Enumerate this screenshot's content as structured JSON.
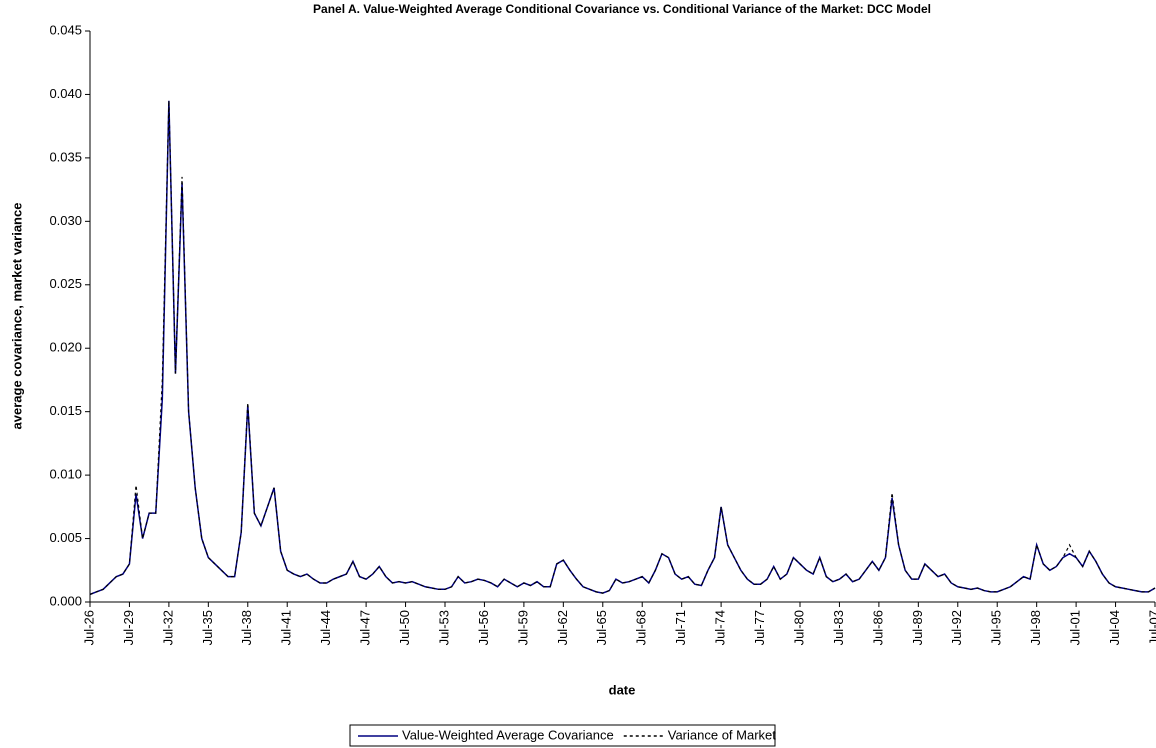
{
  "chart_data": {
    "type": "line",
    "title": "Panel A.  Value-Weighted Average Conditional Covariance vs. Conditional Variance of the Market:  DCC Model",
    "x_label": "date",
    "y_label": "average covariance, market variance",
    "categories": [
      "Jul-26",
      null,
      null,
      null,
      null,
      null,
      "Jul-29",
      null,
      null,
      null,
      null,
      null,
      "Jul-32",
      null,
      null,
      null,
      null,
      null,
      "Jul-35",
      null,
      null,
      null,
      null,
      null,
      "Jul-38",
      null,
      null,
      null,
      null,
      null,
      "Jul-41",
      null,
      null,
      null,
      null,
      null,
      "Jul-44",
      null,
      null,
      null,
      null,
      null,
      "Jul-47",
      null,
      null,
      null,
      null,
      null,
      "Jul-50",
      null,
      null,
      null,
      null,
      null,
      "Jul-53",
      null,
      null,
      null,
      null,
      null,
      "Jul-56",
      null,
      null,
      null,
      null,
      null,
      "Jul-59",
      null,
      null,
      null,
      null,
      null,
      "Jul-62",
      null,
      null,
      null,
      null,
      null,
      "Jul-65",
      null,
      null,
      null,
      null,
      null,
      "Jul-68",
      null,
      null,
      null,
      null,
      null,
      "Jul-71",
      null,
      null,
      null,
      null,
      null,
      "Jul-74",
      null,
      null,
      null,
      null,
      null,
      "Jul-77",
      null,
      null,
      null,
      null,
      null,
      "Jul-80",
      null,
      null,
      null,
      null,
      null,
      "Jul-83",
      null,
      null,
      null,
      null,
      null,
      "Jul-86",
      null,
      null,
      null,
      null,
      null,
      "Jul-89",
      null,
      null,
      null,
      null,
      null,
      "Jul-92",
      null,
      null,
      null,
      null,
      null,
      "Jul-95",
      null,
      null,
      null,
      null,
      null,
      "Jul-98",
      null,
      null,
      null,
      null,
      null,
      "Jul-01",
      null,
      null,
      null,
      null,
      null,
      "Jul-04",
      null,
      null,
      null,
      null,
      null,
      "Jul-07"
    ],
    "series": [
      {
        "name": "Value-Weighted Average Covariance",
        "color": "#000080",
        "dash": false,
        "values": [
          0.0006,
          0.0008,
          0.001,
          0.0015,
          0.002,
          0.0022,
          0.003,
          0.0085,
          0.005,
          0.007,
          0.007,
          0.016,
          0.0395,
          0.018,
          0.033,
          0.015,
          0.009,
          0.005,
          0.0035,
          0.003,
          0.0025,
          0.002,
          0.002,
          0.0055,
          0.0155,
          0.007,
          0.006,
          0.0075,
          0.009,
          0.004,
          0.0025,
          0.0022,
          0.002,
          0.0022,
          0.0018,
          0.0015,
          0.0015,
          0.0018,
          0.002,
          0.0022,
          0.0032,
          0.002,
          0.0018,
          0.0022,
          0.0028,
          0.002,
          0.0015,
          0.0016,
          0.0015,
          0.0016,
          0.0014,
          0.0012,
          0.0011,
          0.001,
          0.001,
          0.0012,
          0.002,
          0.0015,
          0.0016,
          0.0018,
          0.0017,
          0.0015,
          0.0012,
          0.0018,
          0.0015,
          0.0012,
          0.0015,
          0.0013,
          0.0016,
          0.0012,
          0.0012,
          0.003,
          0.0033,
          0.0025,
          0.0018,
          0.0012,
          0.001,
          0.0008,
          0.0007,
          0.0009,
          0.0018,
          0.0015,
          0.0016,
          0.0018,
          0.002,
          0.0015,
          0.0025,
          0.0038,
          0.0035,
          0.0022,
          0.0018,
          0.002,
          0.0014,
          0.0013,
          0.0025,
          0.0035,
          0.0075,
          0.0045,
          0.0035,
          0.0025,
          0.0018,
          0.0014,
          0.0014,
          0.0018,
          0.0028,
          0.0018,
          0.0022,
          0.0035,
          0.003,
          0.0025,
          0.0022,
          0.0035,
          0.002,
          0.0016,
          0.0018,
          0.0022,
          0.0016,
          0.0018,
          0.0025,
          0.0032,
          0.0025,
          0.0035,
          0.0082,
          0.0045,
          0.0025,
          0.0018,
          0.0018,
          0.003,
          0.0025,
          0.002,
          0.0022,
          0.0015,
          0.0012,
          0.0011,
          0.001,
          0.0011,
          0.0009,
          0.0008,
          0.0008,
          0.001,
          0.0012,
          0.0016,
          0.002,
          0.0018,
          0.0045,
          0.003,
          0.0025,
          0.0028,
          0.0035,
          0.0038,
          0.0035,
          0.0028,
          0.004,
          0.0032,
          0.0022,
          0.0015,
          0.0012,
          0.0011,
          0.001,
          0.0009,
          0.0008,
          0.0008,
          0.0011
        ]
      },
      {
        "name": "Variance of Market",
        "color": "#000000",
        "dash": true,
        "values": [
          0.0006,
          0.0008,
          0.001,
          0.0015,
          0.002,
          0.0022,
          0.003,
          0.0092,
          0.005,
          0.007,
          0.007,
          0.0175,
          0.0395,
          0.018,
          0.0335,
          0.015,
          0.009,
          0.005,
          0.0035,
          0.003,
          0.0025,
          0.002,
          0.002,
          0.0055,
          0.0157,
          0.007,
          0.006,
          0.0075,
          0.009,
          0.004,
          0.0025,
          0.0022,
          0.002,
          0.0022,
          0.0018,
          0.0015,
          0.0015,
          0.0018,
          0.002,
          0.0022,
          0.0032,
          0.002,
          0.0018,
          0.0022,
          0.0028,
          0.002,
          0.0015,
          0.0016,
          0.0015,
          0.0016,
          0.0014,
          0.0012,
          0.0011,
          0.001,
          0.001,
          0.0012,
          0.002,
          0.0015,
          0.0016,
          0.0018,
          0.0017,
          0.0015,
          0.0012,
          0.0018,
          0.0015,
          0.0012,
          0.0015,
          0.0013,
          0.0016,
          0.0012,
          0.0012,
          0.003,
          0.0033,
          0.0025,
          0.0018,
          0.0012,
          0.001,
          0.0008,
          0.0007,
          0.0009,
          0.0018,
          0.0015,
          0.0016,
          0.0018,
          0.002,
          0.0015,
          0.0025,
          0.0038,
          0.0035,
          0.0022,
          0.0018,
          0.002,
          0.0014,
          0.0013,
          0.0025,
          0.0035,
          0.0075,
          0.0045,
          0.0035,
          0.0025,
          0.0018,
          0.0014,
          0.0014,
          0.0018,
          0.0028,
          0.0018,
          0.0022,
          0.0035,
          0.003,
          0.0025,
          0.0022,
          0.0035,
          0.002,
          0.0016,
          0.0018,
          0.0022,
          0.0016,
          0.0018,
          0.0025,
          0.0032,
          0.0025,
          0.0035,
          0.0086,
          0.0045,
          0.0025,
          0.0018,
          0.0018,
          0.003,
          0.0025,
          0.002,
          0.0022,
          0.0015,
          0.0012,
          0.0011,
          0.001,
          0.0011,
          0.0009,
          0.0008,
          0.0008,
          0.001,
          0.0012,
          0.0016,
          0.002,
          0.0018,
          0.0045,
          0.003,
          0.0025,
          0.0028,
          0.0035,
          0.0045,
          0.0035,
          0.0028,
          0.004,
          0.0032,
          0.0022,
          0.0015,
          0.0012,
          0.0011,
          0.001,
          0.0009,
          0.0008,
          0.0008,
          0.0011
        ]
      }
    ],
    "ylim": [
      0,
      0.045
    ],
    "yticks": [
      {
        "value": 0,
        "label": "0.000"
      },
      0.005,
      {
        "value": 0.01,
        "label": "0.010"
      },
      0.015,
      {
        "value": 0.02,
        "label": "0.020"
      },
      0.025,
      {
        "value": 0.03,
        "label": "0.030"
      },
      0.035,
      {
        "value": 0.04,
        "label": "0.040"
      },
      0.045
    ],
    "grid": false,
    "legend": "bottom"
  }
}
